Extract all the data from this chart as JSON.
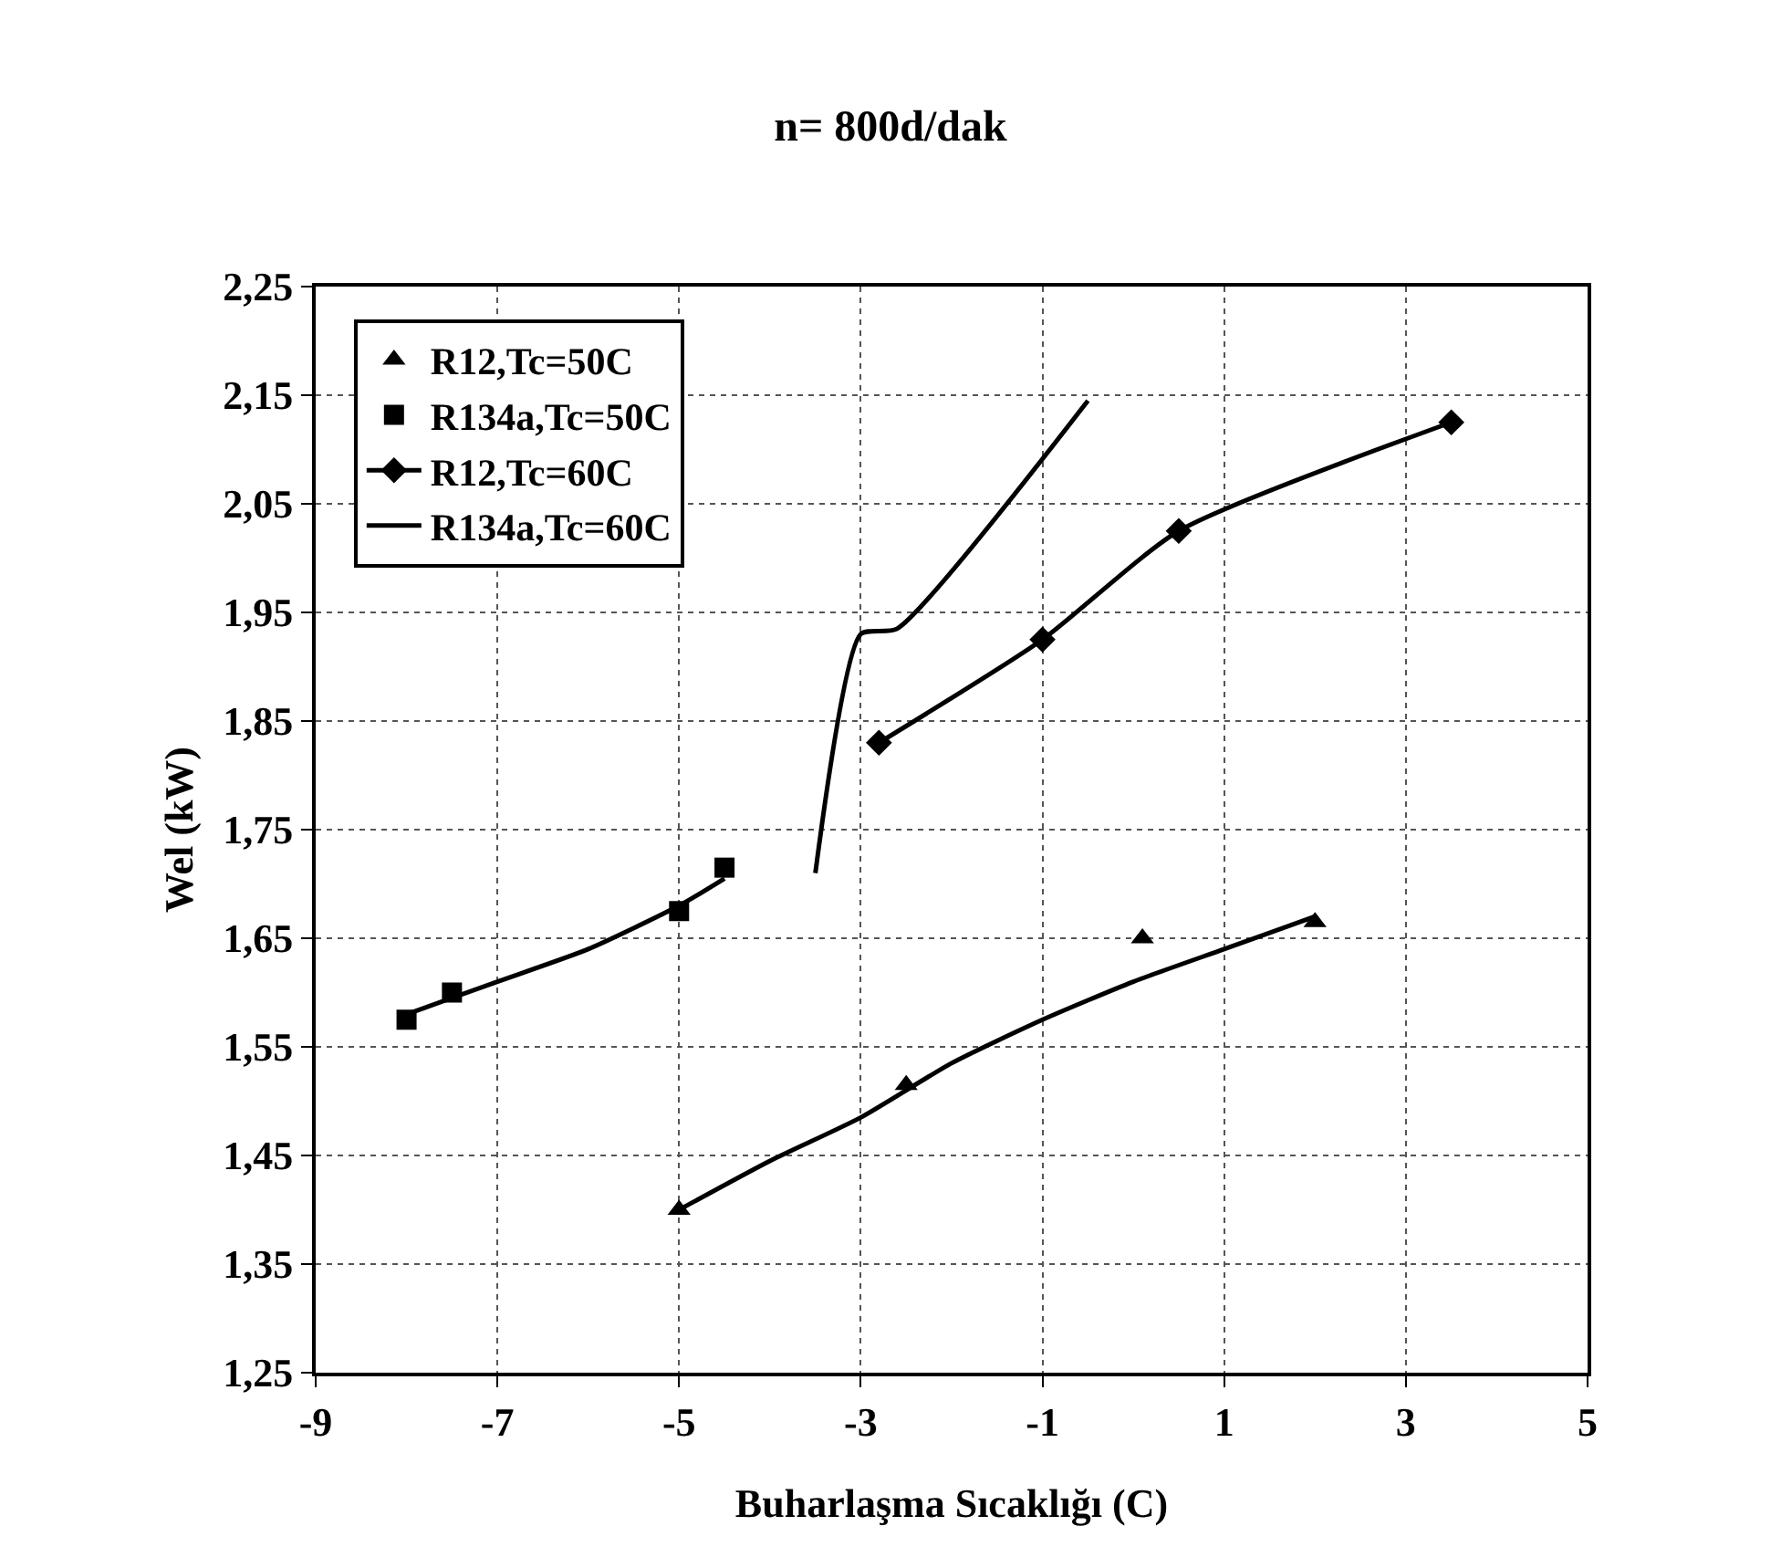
{
  "chart_data": {
    "type": "line",
    "title": "n= 800d/dak",
    "xlabel": "Buharlaşma Sıcaklığı (C)",
    "ylabel": "Wel (kW)",
    "xlim": [
      -9,
      5
    ],
    "xticks": [
      -9,
      -7,
      -5,
      -3,
      -1,
      1,
      3,
      5
    ],
    "ylim": [
      1.25,
      2.25
    ],
    "yticks": [
      {
        "value": 1.25,
        "label": "1,25"
      },
      {
        "value": 1.35,
        "label": "1,35"
      },
      {
        "value": 1.45,
        "label": "1,45"
      },
      {
        "value": 1.55,
        "label": "1,55"
      },
      {
        "value": 1.65,
        "label": "1,65"
      },
      {
        "value": 1.75,
        "label": "1,75"
      },
      {
        "value": 1.85,
        "label": "1,85"
      },
      {
        "value": 1.95,
        "label": "1,95"
      },
      {
        "value": 2.05,
        "label": "2,05"
      },
      {
        "value": 2.15,
        "label": "2,15"
      },
      {
        "value": 2.25,
        "label": "2,25"
      }
    ],
    "grid": true,
    "legend": "top left",
    "series": [
      {
        "name": "R12,Tc=50C",
        "type": "scatter",
        "marker": "triangle",
        "color": "#000000",
        "x": [
          -5,
          -2.5,
          0.1,
          2
        ],
        "values": [
          1.4,
          1.515,
          1.65,
          1.665
        ]
      },
      {
        "name": "R134a,Tc=50C",
        "type": "scatter",
        "marker": "square",
        "color": "#000000",
        "x": [
          -8,
          -7.5,
          -5,
          -4.5
        ],
        "values": [
          1.575,
          1.6,
          1.675,
          1.715
        ]
      },
      {
        "name": "R12,Tc=60C",
        "marker": "diamond",
        "line_style": "solid",
        "color": "#000000",
        "x": [
          -2.8,
          -1,
          0.5,
          3.5
        ],
        "values": [
          1.83,
          1.925,
          2.025,
          2.125
        ]
      },
      {
        "name": "R134a,Tc=60C",
        "marker": "none",
        "line_style": "solid",
        "color": "#000000",
        "x": [
          -3.5,
          -3.0,
          -2.6,
          -0.5
        ],
        "values": [
          1.71,
          1.93,
          1.935,
          2.145
        ]
      },
      {
        "marker": "none",
        "line_style": "solid",
        "color": "#000000",
        "x": [
          -5,
          -4,
          -3,
          -2,
          -1,
          0,
          1,
          2
        ],
        "values": [
          1.4,
          1.445,
          1.485,
          1.535,
          1.575,
          1.61,
          1.64,
          1.67
        ]
      },
      {
        "marker": "none",
        "line_style": "solid",
        "color": "#000000",
        "x": [
          -8,
          -7,
          -6,
          -5,
          -4.5
        ],
        "values": [
          1.58,
          1.61,
          1.64,
          1.68,
          1.705
        ]
      }
    ]
  }
}
